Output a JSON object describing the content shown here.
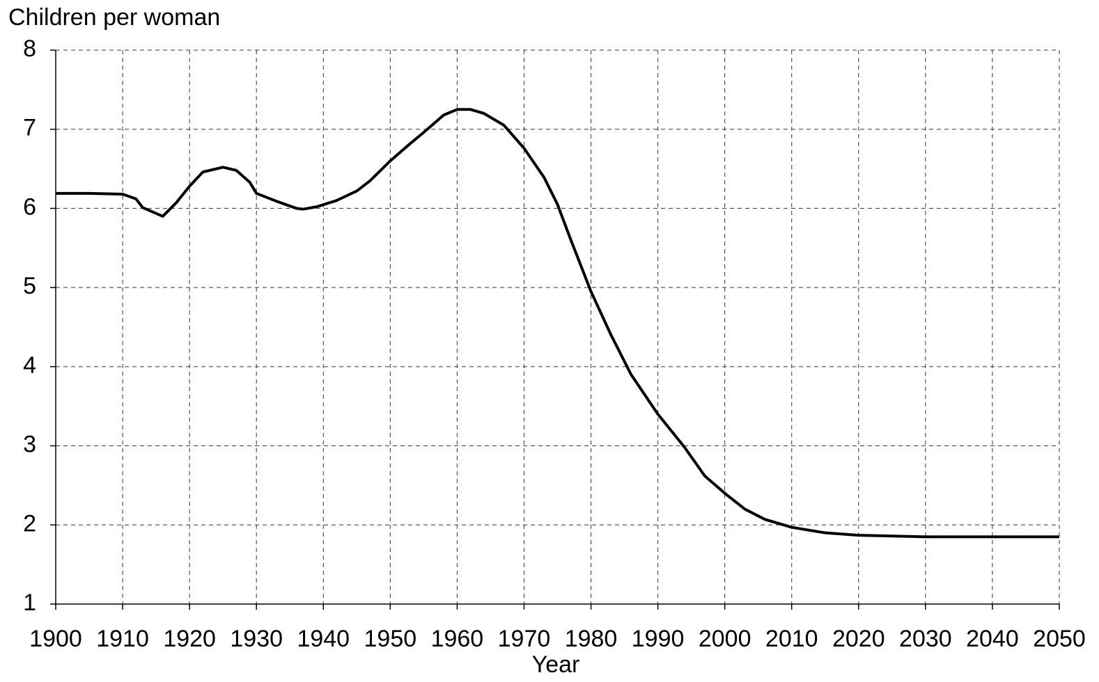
{
  "chart_data": {
    "type": "line",
    "y_label": "Children per woman",
    "x_label": "Year",
    "x": [
      1900,
      1905,
      1910,
      1912,
      1913,
      1916,
      1918,
      1920,
      1922,
      1925,
      1927,
      1929,
      1930,
      1933,
      1936,
      1937,
      1939,
      1942,
      1945,
      1947,
      1950,
      1953,
      1955,
      1958,
      1960,
      1962,
      1964,
      1967,
      1970,
      1973,
      1975,
      1977,
      1980,
      1983,
      1986,
      1990,
      1994,
      1997,
      2000,
      2003,
      2006,
      2010,
      2015,
      2020,
      2030,
      2040,
      2050
    ],
    "series": [
      {
        "color": "#000000",
        "values": [
          6.19,
          6.19,
          6.18,
          6.12,
          6.01,
          5.9,
          6.07,
          6.28,
          6.46,
          6.52,
          6.48,
          6.33,
          6.19,
          6.09,
          6.0,
          5.99,
          6.02,
          6.1,
          6.22,
          6.35,
          6.6,
          6.82,
          6.96,
          7.18,
          7.25,
          7.25,
          7.2,
          7.05,
          6.76,
          6.39,
          6.05,
          5.6,
          4.95,
          4.4,
          3.9,
          3.4,
          2.98,
          2.62,
          2.4,
          2.2,
          2.07,
          1.97,
          1.9,
          1.87,
          1.85,
          1.85,
          1.85
        ]
      }
    ],
    "xlim": [
      1900,
      2050
    ],
    "xticks": [
      1900,
      1910,
      1920,
      1930,
      1940,
      1950,
      1960,
      1970,
      1980,
      1990,
      2000,
      2010,
      2020,
      2030,
      2040,
      2050
    ],
    "ylim": [
      1,
      8
    ],
    "yticks": [
      1,
      2,
      3,
      4,
      5,
      6,
      7,
      8
    ],
    "grid": true
  }
}
